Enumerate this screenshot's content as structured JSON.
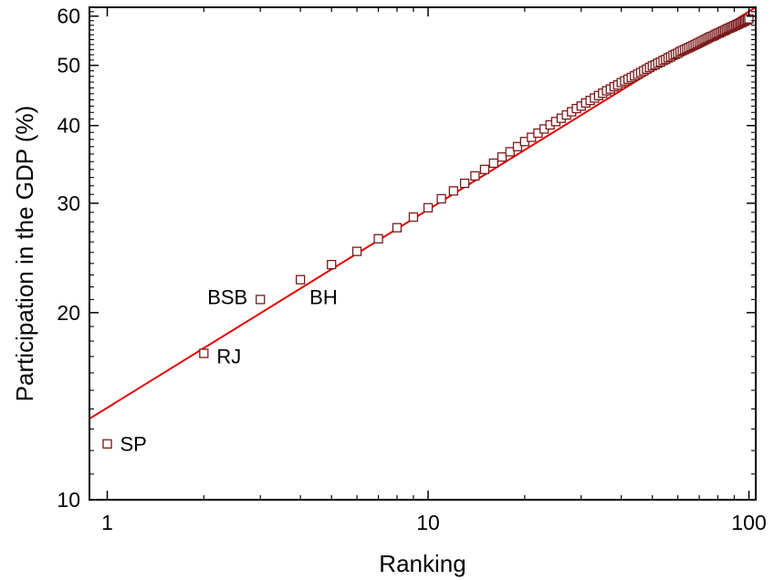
{
  "chart_data": {
    "type": "scatter",
    "title": "",
    "xlabel": "Ranking",
    "ylabel": "Participation in the GDP (%)",
    "x_scale": "log",
    "y_scale": "log",
    "xlim": [
      0.88,
      105
    ],
    "ylim": [
      10,
      62
    ],
    "x_ticks": [
      1,
      10,
      100
    ],
    "x_tick_labels": [
      "1",
      "10",
      "100"
    ],
    "y_ticks": [
      10,
      20,
      30,
      40,
      50,
      60
    ],
    "y_tick_labels": [
      "10",
      "20",
      "30",
      "40",
      "50",
      "60"
    ],
    "grid": false,
    "legend": "none",
    "marker_color": "#7a1a1a",
    "fit_color": "#e00000",
    "fit_line": {
      "x": [
        0.88,
        105
      ],
      "y": [
        13.5,
        62
      ]
    },
    "points": [
      {
        "x": 1,
        "y": 12.3
      },
      {
        "x": 2,
        "y": 17.2
      },
      {
        "x": 3,
        "y": 21.0
      },
      {
        "x": 4,
        "y": 22.6
      },
      {
        "x": 5,
        "y": 23.9
      },
      {
        "x": 6,
        "y": 25.1
      },
      {
        "x": 7,
        "y": 26.3
      },
      {
        "x": 8,
        "y": 27.4
      },
      {
        "x": 9,
        "y": 28.5
      },
      {
        "x": 10,
        "y": 29.5
      },
      {
        "x": 11,
        "y": 30.5
      },
      {
        "x": 12,
        "y": 31.4
      },
      {
        "x": 13,
        "y": 32.3
      },
      {
        "x": 14,
        "y": 33.2
      },
      {
        "x": 15,
        "y": 34.0
      },
      {
        "x": 16,
        "y": 34.8
      },
      {
        "x": 17,
        "y": 35.6
      },
      {
        "x": 18,
        "y": 36.3
      },
      {
        "x": 19,
        "y": 37.0
      },
      {
        "x": 20,
        "y": 37.7
      },
      {
        "x": 21,
        "y": 38.3
      },
      {
        "x": 22,
        "y": 38.9
      },
      {
        "x": 23,
        "y": 39.5
      },
      {
        "x": 24,
        "y": 40.1
      },
      {
        "x": 25,
        "y": 40.6
      },
      {
        "x": 26,
        "y": 41.1
      },
      {
        "x": 27,
        "y": 41.6
      },
      {
        "x": 28,
        "y": 42.1
      },
      {
        "x": 29,
        "y": 42.6
      },
      {
        "x": 30,
        "y": 43.0
      },
      {
        "x": 31,
        "y": 43.5
      },
      {
        "x": 32,
        "y": 43.9
      },
      {
        "x": 33,
        "y": 44.3
      },
      {
        "x": 34,
        "y": 44.7
      },
      {
        "x": 35,
        "y": 45.1
      },
      {
        "x": 36,
        "y": 45.5
      },
      {
        "x": 37,
        "y": 45.8
      },
      {
        "x": 38,
        "y": 46.2
      },
      {
        "x": 39,
        "y": 46.5
      },
      {
        "x": 40,
        "y": 46.9
      },
      {
        "x": 41,
        "y": 47.2
      },
      {
        "x": 42,
        "y": 47.5
      },
      {
        "x": 43,
        "y": 47.8
      },
      {
        "x": 44,
        "y": 48.1
      },
      {
        "x": 45,
        "y": 48.4
      },
      {
        "x": 46,
        "y": 48.7
      },
      {
        "x": 47,
        "y": 49.0
      },
      {
        "x": 48,
        "y": 49.3
      },
      {
        "x": 49,
        "y": 49.6
      },
      {
        "x": 50,
        "y": 49.9
      },
      {
        "x": 51,
        "y": 50.1
      },
      {
        "x": 52,
        "y": 50.4
      },
      {
        "x": 53,
        "y": 50.6
      },
      {
        "x": 54,
        "y": 50.9
      },
      {
        "x": 55,
        "y": 51.1
      },
      {
        "x": 56,
        "y": 51.4
      },
      {
        "x": 57,
        "y": 51.6
      },
      {
        "x": 58,
        "y": 51.9
      },
      {
        "x": 59,
        "y": 52.1
      },
      {
        "x": 60,
        "y": 52.3
      },
      {
        "x": 61,
        "y": 52.6
      },
      {
        "x": 62,
        "y": 52.8
      },
      {
        "x": 63,
        "y": 53.0
      },
      {
        "x": 64,
        "y": 53.2
      },
      {
        "x": 65,
        "y": 53.4
      },
      {
        "x": 66,
        "y": 53.6
      },
      {
        "x": 67,
        "y": 53.8
      },
      {
        "x": 68,
        "y": 54.0
      },
      {
        "x": 69,
        "y": 54.2
      },
      {
        "x": 70,
        "y": 54.4
      },
      {
        "x": 71,
        "y": 54.6
      },
      {
        "x": 72,
        "y": 54.8
      },
      {
        "x": 73,
        "y": 55.0
      },
      {
        "x": 74,
        "y": 55.2
      },
      {
        "x": 75,
        "y": 55.4
      },
      {
        "x": 76,
        "y": 55.6
      },
      {
        "x": 77,
        "y": 55.7
      },
      {
        "x": 78,
        "y": 55.9
      },
      {
        "x": 79,
        "y": 56.1
      },
      {
        "x": 80,
        "y": 56.3
      },
      {
        "x": 81,
        "y": 56.4
      },
      {
        "x": 82,
        "y": 56.6
      },
      {
        "x": 83,
        "y": 56.8
      },
      {
        "x": 84,
        "y": 56.9
      },
      {
        "x": 85,
        "y": 57.1
      },
      {
        "x": 86,
        "y": 57.3
      },
      {
        "x": 87,
        "y": 57.4
      },
      {
        "x": 88,
        "y": 57.6
      },
      {
        "x": 89,
        "y": 57.7
      },
      {
        "x": 90,
        "y": 57.9
      },
      {
        "x": 91,
        "y": 58.0
      },
      {
        "x": 92,
        "y": 58.2
      },
      {
        "x": 93,
        "y": 58.3
      },
      {
        "x": 94,
        "y": 58.5
      },
      {
        "x": 95,
        "y": 58.6
      },
      {
        "x": 96,
        "y": 58.8
      },
      {
        "x": 97,
        "y": 58.9
      },
      {
        "x": 98,
        "y": 59.1
      },
      {
        "x": 99,
        "y": 59.2
      },
      {
        "x": 100,
        "y": 59.4
      }
    ],
    "annotations": [
      {
        "text": "SP",
        "x": 1,
        "y": 12.3
      },
      {
        "text": "RJ",
        "x": 2,
        "y": 17.2
      },
      {
        "text": "BSB",
        "x": 3,
        "y": 21.0
      },
      {
        "text": "BH",
        "x": 4,
        "y": 22.6
      }
    ]
  }
}
